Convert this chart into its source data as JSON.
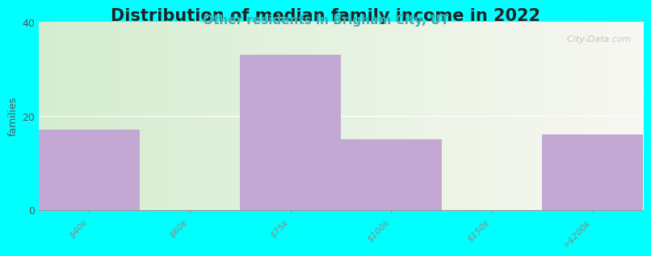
{
  "title": "Distribution of median family income in 2022",
  "subtitle": "Other residents in Brigham City, UT",
  "categories": [
    "$40k",
    "$60k",
    "$75k",
    "$100k",
    "$150k",
    ">$200k"
  ],
  "values": [
    17,
    0,
    33,
    15,
    0,
    16
  ],
  "bar_color": "#C4A8D4",
  "ylabel": "families",
  "ylim": [
    0,
    40
  ],
  "yticks": [
    0,
    20,
    40
  ],
  "title_fontsize": 15,
  "subtitle_fontsize": 11,
  "title_color": "#222222",
  "subtitle_color": "#3AACAC",
  "outer_bg_color": "#00FFFF",
  "plot_bg_gradient_left": "#D4EDD0",
  "plot_bg_gradient_right": "#F8F8F2",
  "watermark": "  City-Data.com",
  "tick_label_color": "#888888",
  "tick_label_fontsize": 8
}
